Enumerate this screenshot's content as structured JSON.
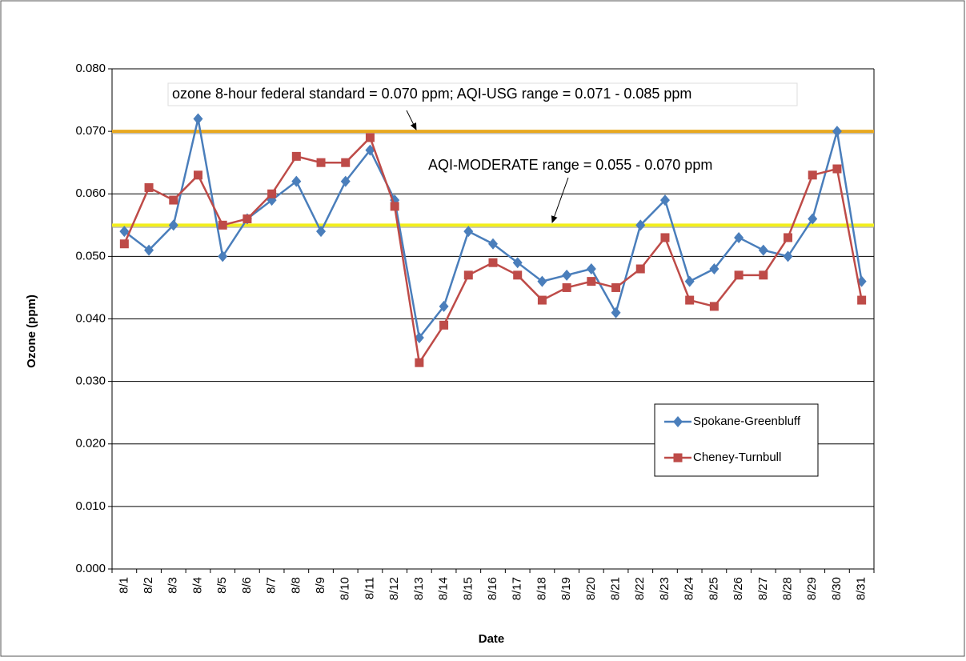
{
  "chart_data": {
    "type": "line",
    "x_label": "Date",
    "y_label": "Ozone (ppm)",
    "categories": [
      "8/1",
      "8/2",
      "8/3",
      "8/4",
      "8/5",
      "8/6",
      "8/7",
      "8/8",
      "8/9",
      "8/10",
      "8/11",
      "8/12",
      "8/13",
      "8/14",
      "8/15",
      "8/16",
      "8/17",
      "8/18",
      "8/19",
      "8/20",
      "8/21",
      "8/22",
      "8/23",
      "8/24",
      "8/25",
      "8/26",
      "8/27",
      "8/28",
      "8/29",
      "8/30",
      "8/31"
    ],
    "series": [
      {
        "name": "Spokane-Greenbluff",
        "color": "#4a7ebb",
        "marker": "diamond",
        "values": [
          0.054,
          0.051,
          0.055,
          0.072,
          0.05,
          0.056,
          0.059,
          0.062,
          0.054,
          0.062,
          0.067,
          0.059,
          0.037,
          0.042,
          0.054,
          0.052,
          0.049,
          0.046,
          0.047,
          0.048,
          0.041,
          0.055,
          0.059,
          0.046,
          0.048,
          0.053,
          0.051,
          0.05,
          0.056,
          0.07,
          0.046
        ]
      },
      {
        "name": "Cheney-Turnbull",
        "color": "#be4b48",
        "marker": "square",
        "values": [
          0.052,
          0.061,
          0.059,
          0.063,
          0.055,
          0.056,
          0.06,
          0.066,
          0.065,
          0.065,
          0.069,
          0.058,
          0.033,
          0.039,
          0.047,
          0.049,
          0.047,
          0.043,
          0.045,
          0.046,
          0.045,
          0.048,
          0.053,
          0.043,
          0.042,
          0.047,
          0.047,
          0.053,
          0.063,
          0.064,
          0.043
        ]
      }
    ],
    "reference_lines": [
      {
        "value": 0.07,
        "color": "#e8a820"
      },
      {
        "value": 0.055,
        "color": "#f2ee1c"
      }
    ],
    "annotations": [
      {
        "text": "ozone 8-hour federal standard = 0.070 ppm; AQI-USG range = 0.071 - 0.085 ppm"
      },
      {
        "text": "AQI-MODERATE range = 0.055 - 0.070 ppm"
      }
    ],
    "ylim": [
      0,
      0.08
    ],
    "yticks": [
      {
        "value": 0,
        "label": "0.000"
      },
      {
        "value": 0.01,
        "label": "0.010"
      },
      {
        "value": 0.02,
        "label": "0.020"
      },
      {
        "value": 0.03,
        "label": "0.030"
      },
      {
        "value": 0.04,
        "label": "0.040"
      },
      {
        "value": 0.05,
        "label": "0.050"
      },
      {
        "value": 0.06,
        "label": "0.060"
      },
      {
        "value": 0.07,
        "label": "0.070"
      },
      {
        "value": 0.08,
        "label": "0.080"
      }
    ],
    "grid": true,
    "legend_position": "right"
  }
}
